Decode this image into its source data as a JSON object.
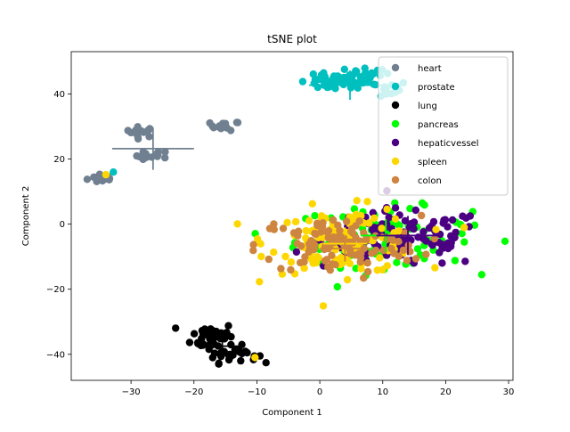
{
  "chart_data": {
    "type": "scatter",
    "title": "tSNE plot",
    "xlabel": "Component 1",
    "ylabel": "Component 2",
    "xlim": [
      -39.5,
      30.7
    ],
    "ylim": [
      -48,
      53
    ],
    "xticks": [
      -30,
      -20,
      -10,
      0,
      10,
      20,
      30
    ],
    "yticks": [
      -40,
      -20,
      0,
      20,
      40
    ],
    "xtick_labels": [
      "−30",
      "−20",
      "−10",
      "0",
      "10",
      "20",
      "30"
    ],
    "ytick_labels": [
      "−40",
      "−20",
      "0",
      "20",
      "40"
    ],
    "grid": false,
    "legend_position": "top-right",
    "series": [
      {
        "name": "heart",
        "color": "#708090",
        "clusters": [
          {
            "cx": -34.5,
            "cy": 14.2,
            "sx": 1.2,
            "sy": 0.8,
            "n": 14
          },
          {
            "cx": -28.5,
            "cy": 28.3,
            "sx": 1.2,
            "sy": 0.8,
            "n": 14
          },
          {
            "cx": -26.5,
            "cy": 21.0,
            "sx": 1.3,
            "sy": 0.8,
            "n": 14
          },
          {
            "cx": -15.0,
            "cy": 30.2,
            "sx": 1.2,
            "sy": 0.7,
            "n": 14
          }
        ],
        "error_bar": {
          "x": -26.5,
          "y": 23.2,
          "xerr": 6.5,
          "yerr": 6.5
        }
      },
      {
        "name": "prostate",
        "color": "#00bfbf",
        "clusters": [
          {
            "cx": 2.5,
            "cy": 43.5,
            "sx": 3.0,
            "sy": 1.2,
            "n": 45
          },
          {
            "cx": 7.0,
            "cy": 46.5,
            "sx": 2.0,
            "sy": 1.0,
            "n": 18
          },
          {
            "cx": 9.5,
            "cy": 41.5,
            "sx": 2.5,
            "sy": 1.3,
            "n": 18
          }
        ],
        "extra_points": [
          [
            -32.8,
            16.0
          ]
        ],
        "error_bar": {
          "x": 4.8,
          "y": 42.7,
          "xerr": 6.5,
          "yerr": 4.5
        }
      },
      {
        "name": "lung",
        "color": "#000000",
        "clusters": [
          {
            "cx": -17.0,
            "cy": -34.5,
            "sx": 1.7,
            "sy": 2.2,
            "n": 45
          },
          {
            "cx": -14.0,
            "cy": -40.0,
            "sx": 2.0,
            "sy": 1.3,
            "n": 30
          }
        ],
        "error_bar": {
          "x": -15.5,
          "y": -37.5,
          "xerr": 3.0,
          "yerr": 3.0
        }
      },
      {
        "name": "pancreas",
        "color": "#00ff00",
        "clusters": [
          {
            "cx": 10.0,
            "cy": -4.0,
            "sx": 7.0,
            "sy": 4.5,
            "n": 110
          }
        ],
        "error_bar": {
          "x": 10.5,
          "y": -3.5,
          "xerr": 4.0,
          "yerr": 5.0
        }
      },
      {
        "name": "hepaticvessel",
        "color": "#4b0082",
        "clusters": [
          {
            "cx": 13.5,
            "cy": -4.5,
            "sx": 6.5,
            "sy": 4.5,
            "n": 110
          }
        ],
        "error_bar": {
          "x": 14.0,
          "y": -3.5,
          "xerr": 5.0,
          "yerr": 6.0
        }
      },
      {
        "name": "spleen",
        "color": "#ffd700",
        "clusters": [
          {
            "cx": 4.0,
            "cy": -5.0,
            "sx": 6.0,
            "sy": 5.0,
            "n": 110
          }
        ],
        "extra_points": [
          [
            -10.3,
            -41.0
          ],
          [
            -34.0,
            15.2
          ]
        ],
        "error_bar": {
          "x": 4.0,
          "y": -6.0,
          "xerr": 3.5,
          "yerr": 5.0
        }
      },
      {
        "name": "colon",
        "color": "#cd853f",
        "clusters": [
          {
            "cx": 3.0,
            "cy": -6.5,
            "sx": 6.5,
            "sy": 4.5,
            "n": 110
          }
        ],
        "error_bar": {
          "x": 4.0,
          "y": -7.5,
          "xerr": 4.0,
          "yerr": 4.0
        }
      }
    ]
  }
}
